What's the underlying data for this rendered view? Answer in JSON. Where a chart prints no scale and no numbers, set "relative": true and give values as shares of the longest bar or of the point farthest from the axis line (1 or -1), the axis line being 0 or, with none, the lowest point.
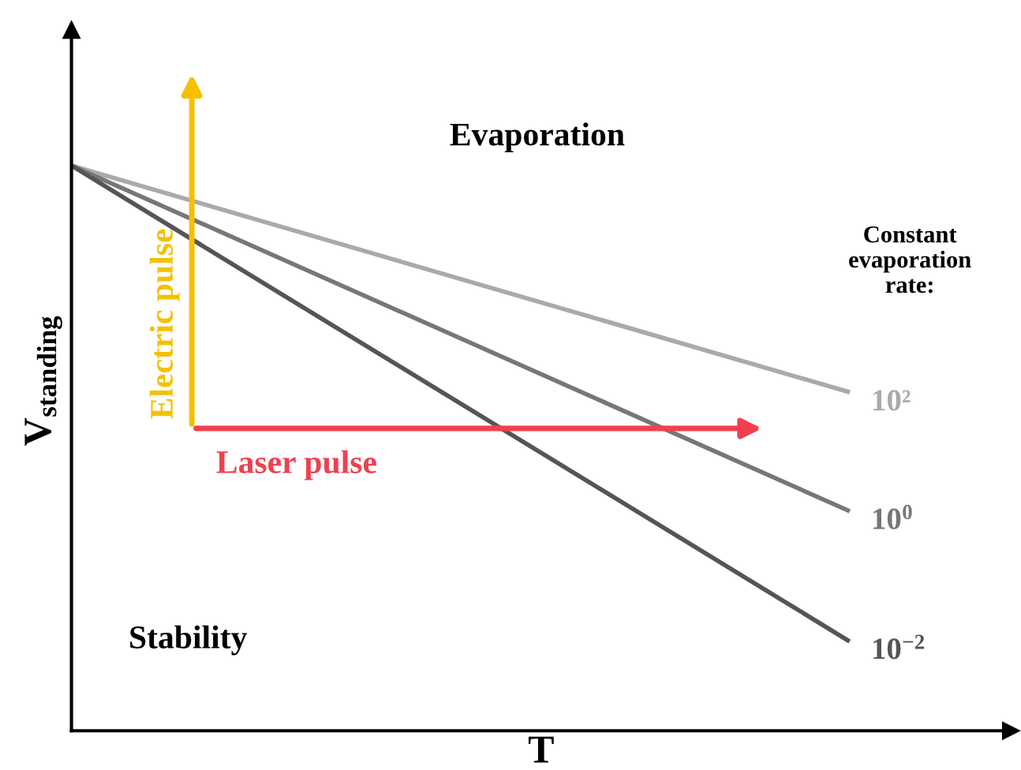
{
  "chart_data": {
    "type": "line",
    "relative": true,
    "xlabel": "T",
    "ylabel": "V$_{standing}$",
    "categories": [
      null,
      null
    ],
    "series": [
      {
        "name": "10²",
        "color": "#aaaaaa",
        "values": [
          1,
          0.6
        ]
      },
      {
        "name": "10$^{0}$",
        "color": "#777777",
        "values": [
          1,
          0.39
        ]
      },
      {
        "name": "10$^{−2}$",
        "color": "#555555",
        "values": [
          1,
          0.16
        ]
      }
    ],
    "annotations": [
      "Evaporation",
      "Stability",
      "Constant evaporation rate:",
      "Electric pulse",
      "Laser pulse"
    ],
    "legend": false,
    "marker": "none",
    "line_style": "solid"
  }
}
